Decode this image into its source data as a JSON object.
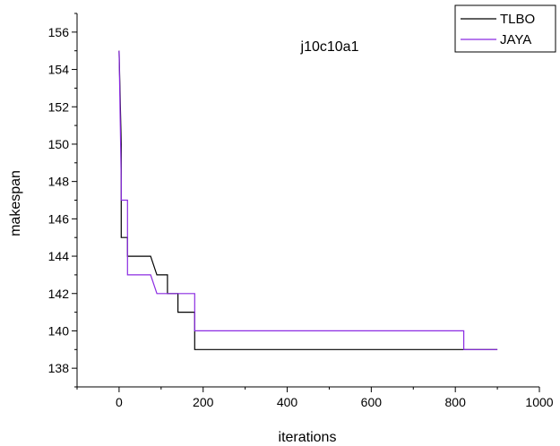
{
  "chart_data": {
    "type": "line",
    "title": "j10c10a1",
    "xlabel": "iterations",
    "ylabel": "makespan",
    "xlim": [
      -100,
      1000
    ],
    "ylim": [
      137,
      157
    ],
    "xticks": [
      0,
      200,
      400,
      600,
      800,
      1000
    ],
    "yticks": [
      138,
      140,
      142,
      144,
      146,
      148,
      150,
      152,
      154,
      156
    ],
    "grid": false,
    "legend_position": "top-right",
    "series": [
      {
        "name": "TLBO",
        "color": "#000000",
        "step": true,
        "points": [
          [
            0,
            155
          ],
          [
            5,
            150
          ],
          [
            5,
            145
          ],
          [
            20,
            145
          ],
          [
            20,
            144
          ],
          [
            75,
            144
          ],
          [
            90,
            143
          ],
          [
            115,
            143
          ],
          [
            115,
            142
          ],
          [
            140,
            142
          ],
          [
            140,
            141
          ],
          [
            180,
            141
          ],
          [
            180,
            139
          ],
          [
            900,
            139
          ]
        ]
      },
      {
        "name": "JAYA",
        "color": "#8b2be2",
        "step": true,
        "points": [
          [
            0,
            155
          ],
          [
            5,
            148
          ],
          [
            5,
            147
          ],
          [
            20,
            147
          ],
          [
            20,
            143
          ],
          [
            75,
            143
          ],
          [
            90,
            142
          ],
          [
            180,
            142
          ],
          [
            180,
            140
          ],
          [
            820,
            140
          ],
          [
            820,
            139
          ],
          [
            900,
            139
          ]
        ]
      }
    ]
  }
}
